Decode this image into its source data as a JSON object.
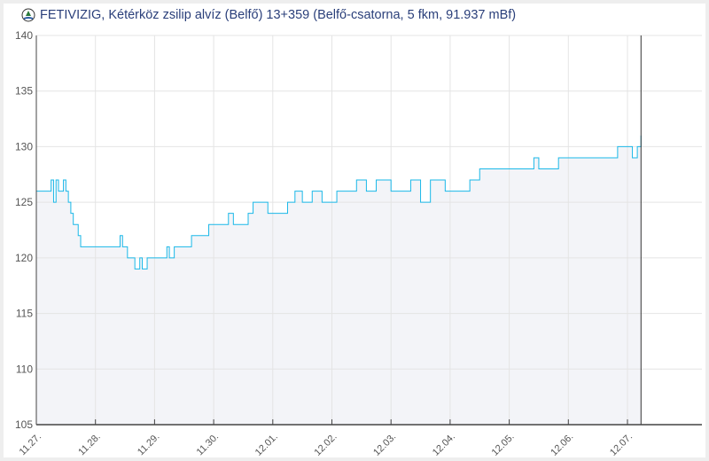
{
  "chart_data": {
    "type": "line",
    "title": "FETIVIZIG, Kétérköz zsilip alvíz (Belfő) 13+359 (Belfő-csatorna, 5 fkm, 91.937 mBf)",
    "ylim": [
      105,
      140
    ],
    "yticks": [
      105,
      110,
      115,
      120,
      125,
      130,
      135,
      140
    ],
    "xticks": [
      "11.27.",
      "11.28.",
      "11.29.",
      "11.30.",
      "12.01.",
      "12.02.",
      "12.03.",
      "12.04.",
      "12.05.",
      "12.06.",
      "12.07."
    ],
    "xlim": [
      "11.27. 00:00",
      "12.08. 03:00"
    ],
    "current_time": "12.07. 05:30",
    "grid": true,
    "line_color": "#1ab8e8",
    "fill_color": "#f3f4f8",
    "series": [
      {
        "x": [
          "11.27. 00:00",
          "11.27. 06:00",
          "11.27. 07:00",
          "11.27. 08:00",
          "11.27. 09:00",
          "11.27. 11:00",
          "11.27. 12:00",
          "11.27. 13:00",
          "11.27. 14:00",
          "11.27. 15:00",
          "11.27. 17:00",
          "11.27. 18:00",
          "11.27. 20:00",
          "11.28. 09:00",
          "11.28. 10:00",
          "11.28. 11:00",
          "11.28. 13:00",
          "11.28. 16:00",
          "11.28. 18:00",
          "11.28. 19:00",
          "11.28. 21:00",
          "11.29. 03:00",
          "11.29. 05:00",
          "11.29. 06:00",
          "11.29. 08:00",
          "11.29. 14:00",
          "11.29. 15:00",
          "11.29. 16:00",
          "11.29. 22:00",
          "11.30. 00:00",
          "11.30. 06:00",
          "11.30. 08:00",
          "11.30. 14:00",
          "11.30. 16:00",
          "11.30. 22:00",
          "12.01. 06:00",
          "12.01. 09:00",
          "12.01. 12:00",
          "12.01. 16:00",
          "12.01. 20:00",
          "12.02. 02:00",
          "12.02. 08:00",
          "12.02. 10:00",
          "12.02. 14:00",
          "12.02. 18:00",
          "12.03. 00:00",
          "12.03. 06:00",
          "12.03. 08:00",
          "12.03. 12:00",
          "12.03. 16:00",
          "12.03. 22:00",
          "12.04. 08:00",
          "12.04. 12:00",
          "12.04. 22:00",
          "12.05. 04:00",
          "12.05. 10:00",
          "12.05. 12:00",
          "12.05. 16:00",
          "12.05. 20:00",
          "12.06. 12:00",
          "12.06. 20:00",
          "12.07. 02:00",
          "12.07. 04:00",
          "12.07. 05:30"
        ],
        "y": [
          126,
          127,
          125,
          127,
          126,
          127,
          126,
          125,
          124,
          123,
          122,
          121,
          121,
          121,
          122,
          121,
          120,
          119,
          120,
          119,
          120,
          120,
          121,
          120,
          121,
          121,
          122,
          122,
          123,
          123,
          124,
          123,
          124,
          125,
          124,
          125,
          126,
          125,
          126,
          125,
          126,
          126,
          127,
          126,
          127,
          126,
          126,
          127,
          125,
          127,
          126,
          127,
          128,
          128,
          128,
          129,
          128,
          128,
          129,
          129,
          130,
          129,
          130,
          131
        ]
      }
    ]
  }
}
